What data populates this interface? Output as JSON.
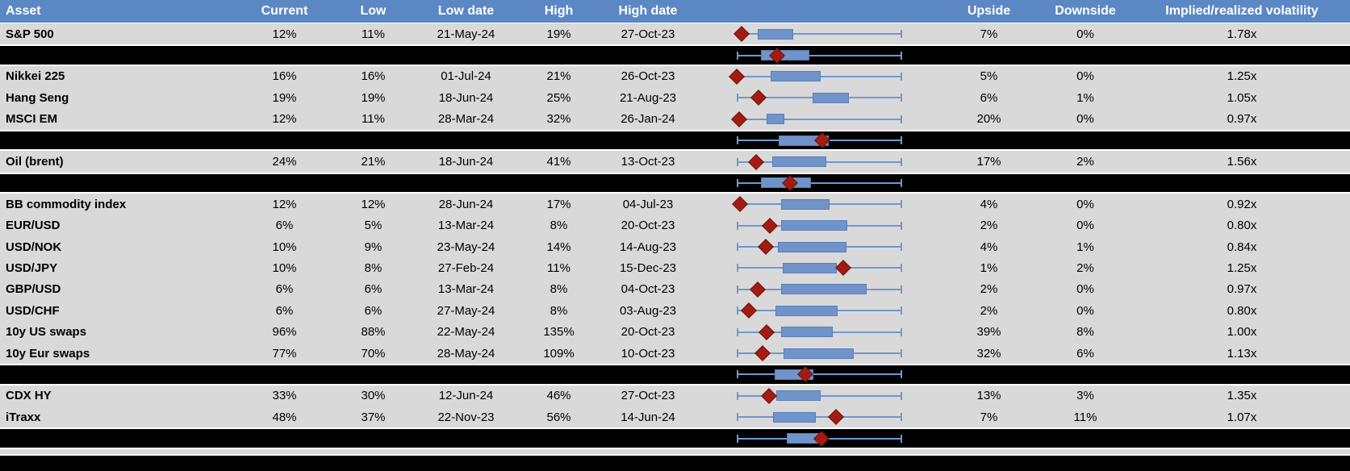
{
  "colors": {
    "header_bg": "#5b87c5",
    "header_text": "#ffffff",
    "row_bg": "#d9d9d9",
    "separator_bg": "#000000",
    "whisker_blue": "#6f98cf",
    "box_blue": "#7094c9",
    "diamond_red": "#a31c12"
  },
  "header": {
    "labels": [
      "Asset",
      "Current",
      "Low",
      "Low date",
      "High",
      "High date",
      "",
      "Upside",
      "Downside",
      "Implied/realized volatility"
    ]
  },
  "chart_data": {
    "type": "table",
    "columns": [
      "Asset",
      "Current",
      "Low",
      "Low date",
      "High",
      "High date",
      "Range box plot",
      "Upside",
      "Downside",
      "Implied/realized volatility"
    ],
    "plot_description": "Each row shows a horizontal box-whisker of the normalized low-high volatility range (whisker spans full range) with a blue inter-quartile box and a dark-red diamond marking the current level; black separator rows carry aggregate box plots.",
    "rows": [
      {
        "type": "data",
        "asset": "S&P 500",
        "current": "12%",
        "low": "11%",
        "low_date": "21-May-24",
        "high": "19%",
        "high_date": "27-Oct-23",
        "upside": "7%",
        "downside": "0%",
        "vol": "1.78x",
        "plot": {
          "diamond": 0.03,
          "box": [
            0.127,
            0.341
          ]
        }
      },
      {
        "type": "black",
        "plot": {
          "diamond": 0.244,
          "box": [
            0.146,
            0.439
          ]
        }
      },
      {
        "type": "data",
        "asset": "Nikkei 225",
        "current": "16%",
        "low": "16%",
        "low_date": "01-Jul-24",
        "high": "21%",
        "high_date": "26-Oct-23",
        "upside": "5%",
        "downside": "0%",
        "vol": "1.25x",
        "plot": {
          "diamond": 0.0,
          "box": [
            0.205,
            0.507
          ]
        }
      },
      {
        "type": "data",
        "asset": "Hang Seng",
        "current": "19%",
        "low": "19%",
        "low_date": "18-Jun-24",
        "high": "25%",
        "high_date": "21-Aug-23",
        "upside": "6%",
        "downside": "1%",
        "vol": "1.05x",
        "plot": {
          "diamond": 0.132,
          "box": [
            0.46,
            0.68
          ]
        }
      },
      {
        "type": "data",
        "asset": "MSCI EM",
        "current": "12%",
        "low": "11%",
        "low_date": "28-Mar-24",
        "high": "32%",
        "high_date": "26-Jan-24",
        "upside": "20%",
        "downside": "0%",
        "vol": "0.97x",
        "plot": {
          "diamond": 0.015,
          "box": [
            0.18,
            0.288
          ]
        }
      },
      {
        "type": "black",
        "plot": {
          "diamond": 0.517,
          "box": [
            0.254,
            0.556
          ]
        }
      },
      {
        "type": "data",
        "asset": "Oil (brent)",
        "current": "24%",
        "low": "21%",
        "low_date": "18-Jun-24",
        "high": "41%",
        "high_date": "13-Oct-23",
        "upside": "17%",
        "downside": "2%",
        "vol": "1.56x",
        "plot": {
          "diamond": 0.117,
          "box": [
            0.215,
            0.541
          ]
        }
      },
      {
        "type": "black",
        "plot": {
          "diamond": 0.322,
          "box": [
            0.146,
            0.449
          ]
        }
      },
      {
        "type": "data",
        "asset": "BB commodity index",
        "current": "12%",
        "low": "12%",
        "low_date": "28-Jun-24",
        "high": "17%",
        "high_date": "04-Jul-23",
        "upside": "4%",
        "downside": "0%",
        "vol": "0.92x",
        "plot": {
          "diamond": 0.02,
          "box": [
            0.268,
            0.561
          ]
        }
      },
      {
        "type": "data",
        "asset": "EUR/USD",
        "current": "6%",
        "low": "5%",
        "low_date": "13-Mar-24",
        "high": "8%",
        "high_date": "20-Oct-23",
        "upside": "2%",
        "downside": "0%",
        "vol": "0.80x",
        "plot": {
          "diamond": 0.2,
          "box": [
            0.268,
            0.668
          ]
        }
      },
      {
        "type": "data",
        "asset": "USD/NOK",
        "current": "10%",
        "low": "9%",
        "low_date": "23-May-24",
        "high": "14%",
        "high_date": "14-Aug-23",
        "upside": "4%",
        "downside": "1%",
        "vol": "0.84x",
        "plot": {
          "diamond": 0.176,
          "box": [
            0.249,
            0.663
          ]
        }
      },
      {
        "type": "data",
        "asset": "USD/JPY",
        "current": "10%",
        "low": "8%",
        "low_date": "27-Feb-24",
        "high": "11%",
        "high_date": "15-Dec-23",
        "upside": "1%",
        "downside": "2%",
        "vol": "1.25x",
        "plot": {
          "diamond": 0.644,
          "box": [
            0.278,
            0.605
          ]
        }
      },
      {
        "type": "data",
        "asset": "GBP/USD",
        "current": "6%",
        "low": "6%",
        "low_date": "13-Mar-24",
        "high": "8%",
        "high_date": "04-Oct-23",
        "upside": "2%",
        "downside": "0%",
        "vol": "0.97x",
        "plot": {
          "diamond": 0.127,
          "box": [
            0.268,
            0.785
          ]
        }
      },
      {
        "type": "data",
        "asset": "USD/CHF",
        "current": "6%",
        "low": "6%",
        "low_date": "27-May-24",
        "high": "8%",
        "high_date": "03-Aug-23",
        "upside": "2%",
        "downside": "0%",
        "vol": "0.80x",
        "plot": {
          "diamond": 0.073,
          "box": [
            0.234,
            0.61
          ]
        }
      },
      {
        "type": "data",
        "asset": "10y US swaps",
        "current": "96%",
        "low": "88%",
        "low_date": "22-May-24",
        "high": "135%",
        "high_date": "20-Oct-23",
        "upside": "39%",
        "downside": "8%",
        "vol": "1.00x",
        "plot": {
          "diamond": 0.18,
          "box": [
            0.268,
            0.58
          ]
        }
      },
      {
        "type": "data",
        "asset": "10y Eur swaps",
        "current": "77%",
        "low": "70%",
        "low_date": "28-May-24",
        "high": "109%",
        "high_date": "10-Oct-23",
        "upside": "32%",
        "downside": "6%",
        "vol": "1.13x",
        "plot": {
          "diamond": 0.156,
          "box": [
            0.283,
            0.707
          ]
        }
      },
      {
        "type": "black",
        "plot": {
          "diamond": 0.415,
          "box": [
            0.229,
            0.463
          ]
        }
      },
      {
        "type": "data",
        "asset": "CDX HY",
        "current": "33%",
        "low": "30%",
        "low_date": "12-Jun-24",
        "high": "46%",
        "high_date": "27-Oct-23",
        "upside": "13%",
        "downside": "3%",
        "vol": "1.35x",
        "plot": {
          "diamond": 0.195,
          "box": [
            0.239,
            0.507
          ]
        }
      },
      {
        "type": "data",
        "asset": "iTraxx",
        "current": "48%",
        "low": "37%",
        "low_date": "22-Nov-23",
        "high": "56%",
        "high_date": "14-Jun-24",
        "upside": "7%",
        "downside": "11%",
        "vol": "1.07x",
        "plot": {
          "diamond": 0.6,
          "box": [
            0.22,
            0.478
          ]
        }
      },
      {
        "type": "black",
        "plot": {
          "diamond": 0.512,
          "box": [
            0.302,
            0.532
          ]
        }
      },
      {
        "type": "spacer"
      },
      {
        "type": "footer"
      }
    ]
  }
}
